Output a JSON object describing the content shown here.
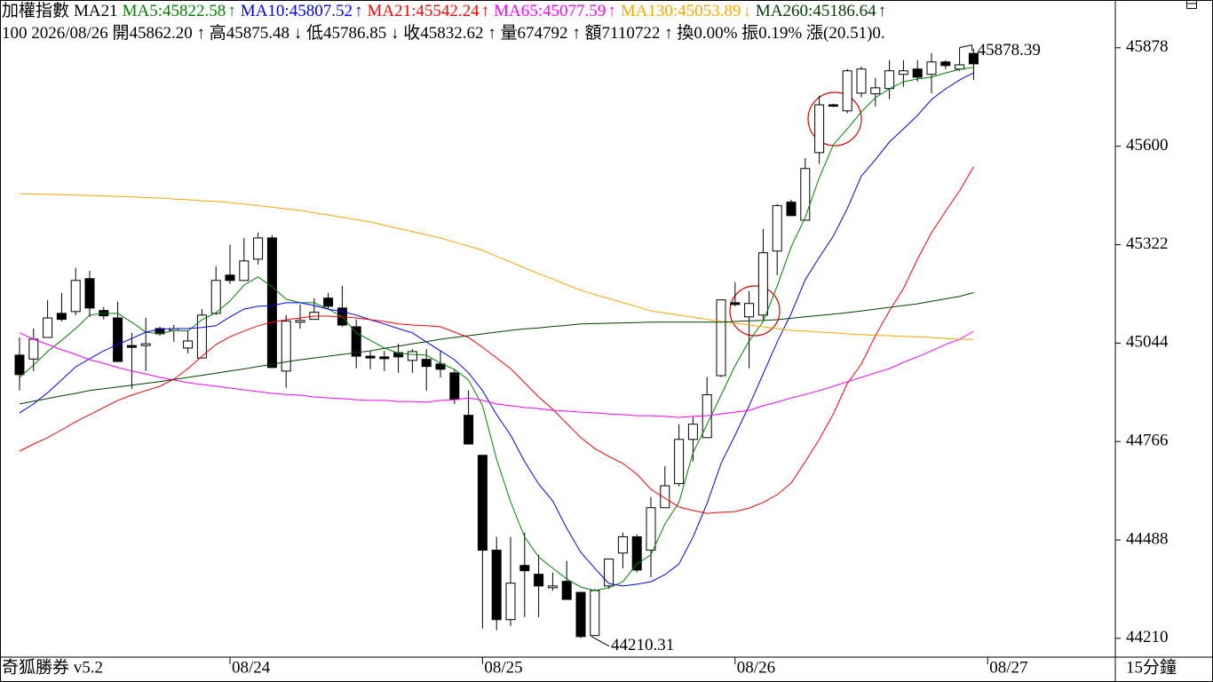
{
  "chart_data": {
    "type": "candlestick",
    "title": "加權指數",
    "indicator": "MA21",
    "info": "100 2026/08/26 開45862.20 ↑ 高45875.48 ↓ 低45786.85 ↓ 收45832.62 ↑ 量674792 ↑ 額7110722 ↑ 換0.00% 振0.19% 漲(20.51)0.",
    "footer_left": "奇狐勝券 v5.2",
    "period": "15分鐘",
    "max_label": "45878.39",
    "min_label": "44210.31",
    "up_color": "#ffffff",
    "down_color": "#000000",
    "ylim": [
      44157,
      46013
    ],
    "yticks": [
      45878,
      45600,
      45322,
      45044,
      44766,
      44488,
      44210
    ],
    "categories": [
      null,
      null,
      null,
      null,
      null,
      null,
      null,
      null,
      null,
      null,
      null,
      null,
      null,
      null,
      null,
      "08/24",
      null,
      null,
      null,
      null,
      null,
      null,
      null,
      null,
      null,
      null,
      null,
      null,
      null,
      null,
      null,
      null,
      null,
      "08/25",
      null,
      null,
      null,
      null,
      null,
      null,
      null,
      null,
      null,
      null,
      null,
      null,
      null,
      null,
      null,
      null,
      null,
      "08/26",
      null,
      null,
      null,
      null,
      null,
      null,
      null,
      null,
      null,
      null,
      null,
      null,
      null,
      null,
      null,
      null,
      null,
      "08/27"
    ],
    "open": [
      45010,
      44999,
      45060,
      45128,
      45133,
      45226,
      45136,
      45115,
      45037,
      45037,
      45085,
      45080,
      45030,
      45002,
      45128,
      45236,
      45221,
      45281,
      45341,
      44965,
      45103,
      45111,
      45171,
      45143,
      45090,
      45007,
      45005,
      45017,
      44995,
      44998,
      44985,
      44960,
      44840,
      44727,
      44459,
      44263,
      44416,
      44391,
      44353,
      44371,
      44340,
      44218,
      44358,
      44451,
      44497,
      44459,
      44579,
      44647,
      44772,
      44777,
      44952,
      45158,
      45118,
      45123,
      45304,
      45442,
      45391,
      45582,
      45717,
      45700,
      45750,
      45748,
      45763,
      45803,
      45818,
      45803,
      45838,
      45818,
      45862.2,
      null
    ],
    "high": [
      45060,
      45085,
      45165,
      45186,
      45256,
      45248,
      45146,
      45161,
      45073,
      45115,
      45090,
      45095,
      45080,
      45140,
      45261,
      45322,
      45341,
      45356,
      45349,
      45123,
      45153,
      45171,
      45186,
      45206,
      45111,
      45022,
      45022,
      45042,
      45027,
      45027,
      45022,
      44970,
      44910,
      44727,
      44497,
      44497,
      44509,
      44446,
      44396,
      44429,
      44340,
      44350,
      44434,
      44509,
      44504,
      44609,
      44696,
      44815,
      44835,
      44948,
      45166,
      45216,
      45191,
      45366,
      45437,
      45449,
      45567,
      45743,
      45720,
      45818,
      45825,
      45793,
      45843,
      45843,
      45843,
      45863,
      45843,
      45878.39,
      45875.48,
      null
    ],
    "low": [
      44910,
      44965,
      45060,
      45105,
      45123,
      45118,
      45111,
      44992,
      44915,
      44965,
      45065,
      45048,
      45015,
      45002,
      45123,
      45211,
      45221,
      45266,
      44975,
      44918,
      45085,
      45111,
      45141,
      45090,
      44973,
      44970,
      44965,
      44960,
      44960,
      44910,
      44947,
      44872,
      44759,
      44238,
      44233,
      44245,
      44270,
      44270,
      44345,
      44320,
      44210.31,
      44218,
      44350,
      44408,
      44396,
      44383,
      44579,
      44639,
      44709,
      44777,
      44948,
      45148,
      44973,
      45111,
      45236,
      45404,
      45391,
      45550,
      45711,
      45693,
      45738,
      45712,
      45733,
      45768,
      45783,
      45750,
      45818,
      45813,
      45786.85,
      null
    ],
    "close": [
      44955,
      45055,
      45115,
      45111,
      45221,
      45143,
      45121,
      44992,
      45032,
      45042,
      45070,
      45085,
      45050,
      45123,
      45221,
      45221,
      45276,
      45341,
      44975,
      45106,
      45108,
      45131,
      45148,
      45095,
      45007,
      45002,
      45000,
      45005,
      45020,
      44978,
      44970,
      44885,
      44759,
      44459,
      44263,
      44366,
      44401,
      44358,
      44358,
      44320,
      44215,
      44345,
      44434,
      44497,
      44403,
      44579,
      44641,
      44772,
      44815,
      44898,
      45166,
      45153,
      45156,
      45299,
      45432,
      45404,
      45537,
      45717,
      45713,
      45813,
      45818,
      45765,
      45813,
      45813,
      45795,
      45838,
      45828,
      45830,
      45832.62,
      null
    ],
    "series": [
      {
        "label": "MA5:45822.58",
        "trend": "↑",
        "color": "#008000",
        "values": [
          44947,
          44982,
          45020,
          45052,
          45085,
          45123,
          45128,
          45128,
          45103,
          45075,
          45070,
          45080,
          45078,
          45110,
          45130,
          45163,
          45208,
          45231,
          45203,
          45168,
          45158,
          45158,
          45140,
          45118,
          45073,
          45052,
          45030,
          45015,
          45012,
          45010,
          44987,
          44970,
          44940,
          44867,
          44716,
          44596,
          44496,
          44440,
          44408,
          44378,
          44355,
          44345,
          44353,
          44370,
          44420,
          44446,
          44533,
          44594,
          44734,
          44814,
          44897,
          44980,
          45050,
          45105,
          45205,
          45316,
          45399,
          45511,
          45604,
          45649,
          45697,
          45737,
          45762,
          45782,
          45790,
          45795,
          45807,
          45817,
          45822.58,
          null
        ]
      },
      {
        "label": "MA10:45807.52",
        "trend": "↑",
        "color": "#0000ff",
        "values": [
          44847,
          44872,
          44904,
          44940,
          44977,
          45000,
          45022,
          45040,
          45057,
          45075,
          45083,
          45085,
          45085,
          45088,
          45093,
          45118,
          45140,
          45148,
          45150,
          45158,
          45158,
          45150,
          45140,
          45133,
          45123,
          45110,
          45098,
          45085,
          45073,
          45047,
          45022,
          44997,
          44960,
          44910,
          44842,
          44784,
          44709,
          44646,
          44598,
          44521,
          44453,
          44408,
          44365,
          44358,
          44363,
          44370,
          44390,
          44420,
          44496,
          44591,
          44704,
          44784,
          44867,
          44957,
          45047,
          45128,
          45223,
          45286,
          45346,
          45424,
          45516,
          45562,
          45612,
          45649,
          45687,
          45732,
          45762,
          45787,
          45807.52,
          null
        ]
      },
      {
        "label": "MA21:45542.24",
        "trend": "↑",
        "color": "#ff0000",
        "values": [
          44739,
          44759,
          44777,
          44799,
          44822,
          44842,
          44862,
          44882,
          44897,
          44910,
          44922,
          44942,
          44972,
          45007,
          45040,
          45062,
          45078,
          45093,
          45103,
          45110,
          45115,
          45120,
          45120,
          45118,
          45115,
          45110,
          45105,
          45098,
          45095,
          45093,
          45090,
          45075,
          45060,
          45032,
          45002,
          44972,
          44932,
          44892,
          44857,
          44817,
          44777,
          44746,
          44724,
          44704,
          44674,
          44631,
          44606,
          44581,
          44571,
          44563,
          44566,
          44568,
          44578,
          44594,
          44616,
          44649,
          44709,
          44772,
          44844,
          44930,
          44985,
          45065,
          45135,
          45198,
          45281,
          45356,
          45416,
          45474,
          45542.24,
          null
        ]
      },
      {
        "label": "MA65:45077.59",
        "trend": "↑",
        "color": "#ff00ff",
        "values": [
          45073,
          45055,
          45040,
          45025,
          45012,
          44997,
          44987,
          44975,
          44965,
          44957,
          44947,
          44940,
          44932,
          44927,
          44922,
          44917,
          44912,
          44907,
          44902,
          44899,
          44897,
          44892,
          44889,
          44887,
          44884,
          44882,
          44882,
          44879,
          44879,
          44877,
          44882,
          44884,
          44889,
          44882,
          44872,
          44867,
          44862,
          44859,
          44854,
          44852,
          44849,
          44847,
          44844,
          44842,
          44839,
          44839,
          44837,
          44834,
          44837,
          44839,
          44844,
          44849,
          44854,
          44867,
          44877,
          44889,
          44899,
          44910,
          44922,
          44935,
          44947,
          44960,
          44972,
          44990,
          45005,
          45022,
          45040,
          45055,
          45077.59,
          null
        ]
      },
      {
        "label": "MA130:45053.89",
        "trend": "↓",
        "color": "#ffa500",
        "values": [
          45466,
          45465,
          45464,
          45463,
          45462,
          45461,
          45460,
          45458,
          45457,
          45455,
          45454,
          45451,
          45449,
          45446,
          45444,
          45441,
          45437,
          45432,
          45428,
          45423,
          45419,
          45412,
          45406,
          45399,
          45393,
          45386,
          45377,
          45368,
          45359,
          45350,
          45341,
          45329,
          45318,
          45306,
          45289,
          45273,
          45256,
          45240,
          45225,
          45209,
          45193,
          45181,
          45170,
          45158,
          45147,
          45135,
          45129,
          45123,
          45117,
          45111,
          45105,
          45100,
          45095,
          45090,
          45085,
          45080,
          45078,
          45075,
          45073,
          45070,
          45068,
          45066,
          45065,
          45063,
          45062,
          45060,
          45057,
          45055,
          45053.89,
          null
        ]
      },
      {
        "label": "MA260:45186.64",
        "trend": "↑",
        "color": "#004000",
        "values": [
          44872,
          44880,
          44887,
          44895,
          44902,
          44910,
          44915,
          44920,
          44925,
          44930,
          44935,
          44941,
          44947,
          44953,
          44959,
          44965,
          44971,
          44978,
          44984,
          44991,
          44997,
          45002,
          45007,
          45012,
          45017,
          45022,
          45029,
          45035,
          45042,
          45048,
          45055,
          45060,
          45065,
          45070,
          45075,
          45080,
          45084,
          45087,
          45091,
          45094,
          45098,
          45099,
          45100,
          45101,
          45102,
          45103,
          45103,
          45103,
          45103,
          45103,
          45103,
          45105,
          45107,
          45108,
          45110,
          45114,
          45118,
          45122,
          45126,
          45130,
          45135,
          45140,
          45145,
          45150,
          45155,
          45162,
          45169,
          45176,
          45186.64,
          null
        ]
      }
    ]
  }
}
